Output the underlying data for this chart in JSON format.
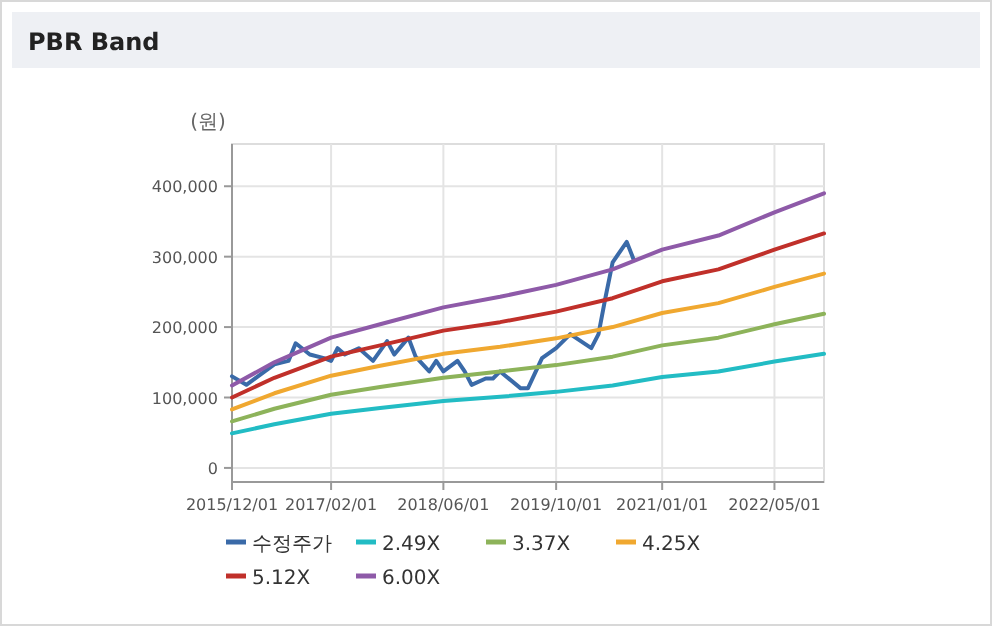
{
  "chart_data": {
    "type": "line",
    "title": "PBR Band",
    "ylabel": "(원)",
    "x": [
      "2015-12",
      "2016-06",
      "2017-02",
      "2017-09",
      "2018-06",
      "2019-02",
      "2019-10",
      "2020-06",
      "2021-01",
      "2021-09",
      "2022-05",
      "2022-12"
    ],
    "series": [
      {
        "name": "수정주가",
        "color": "#3a6aa8",
        "x": [
          "2015-12",
          "2016-02",
          "2016-06",
          "2016-08",
          "2016-09",
          "2016-11",
          "2017-01",
          "2017-02",
          "2017-03",
          "2017-04",
          "2017-06",
          "2017-08",
          "2017-10",
          "2017-11",
          "2018-01",
          "2018-02",
          "2018-04",
          "2018-05",
          "2018-06",
          "2018-08",
          "2018-09",
          "2018-10",
          "2018-12",
          "2019-01",
          "2019-02",
          "2019-05",
          "2019-06",
          "2019-08",
          "2019-10",
          "2019-12",
          "2020-03",
          "2020-04",
          "2020-05",
          "2020-06",
          "2020-08",
          "2020-09"
        ],
        "values": [
          130000,
          118000,
          147000,
          152000,
          177000,
          161000,
          156000,
          152000,
          170000,
          161000,
          170000,
          152000,
          180000,
          161000,
          185000,
          158000,
          137000,
          152000,
          137000,
          152000,
          137000,
          118000,
          127000,
          127000,
          137000,
          113000,
          113000,
          156000,
          170000,
          190000,
          170000,
          190000,
          242000,
          292000,
          321000,
          295000
        ]
      },
      {
        "name": "2.49X",
        "color": "#22bcc4",
        "values": [
          49000,
          62000,
          77000,
          85000,
          95000,
          101000,
          108000,
          117000,
          129000,
          137000,
          151000,
          162000
        ]
      },
      {
        "name": "3.37X",
        "color": "#8db35a",
        "values": [
          66000,
          84000,
          104000,
          115000,
          128000,
          137000,
          146000,
          158000,
          174000,
          185000,
          204000,
          219000
        ]
      },
      {
        "name": "4.25X",
        "color": "#f0a830",
        "values": [
          83000,
          106000,
          131000,
          145000,
          162000,
          172000,
          184000,
          200000,
          220000,
          234000,
          257000,
          276000
        ]
      },
      {
        "name": "5.12X",
        "color": "#c0302a",
        "values": [
          100000,
          128000,
          158000,
          174000,
          195000,
          207000,
          222000,
          241000,
          265000,
          282000,
          310000,
          333000
        ]
      },
      {
        "name": "6.00X",
        "color": "#8e5aa8",
        "values": [
          117000,
          150000,
          185000,
          204000,
          228000,
          243000,
          260000,
          282000,
          310000,
          330000,
          363000,
          390000
        ]
      }
    ],
    "xlim": [
      "2015-12-01",
      "2022-12-01"
    ],
    "xticks": [
      {
        "value": "2015-12-01",
        "label": "2015/12/01"
      },
      {
        "value": "2017-02-01",
        "label": "2017/02/01"
      },
      {
        "value": "2018-06-01",
        "label": "2018/06/01"
      },
      {
        "value": "2019-10-01",
        "label": "2019/10/01"
      },
      {
        "value": "2021-01-01",
        "label": "2021/01/01"
      },
      {
        "value": "2022-05-01",
        "label": "2022/05/01"
      }
    ],
    "ylim": [
      -20000,
      460000
    ],
    "yticks": [
      {
        "value": 0,
        "label": "0"
      },
      {
        "value": 100000,
        "label": "100,000"
      },
      {
        "value": 200000,
        "label": "200,000"
      },
      {
        "value": 300000,
        "label": "300,000"
      },
      {
        "value": 400000,
        "label": "400,000"
      }
    ],
    "grid": true,
    "legend": "bottom",
    "marker": "none"
  }
}
